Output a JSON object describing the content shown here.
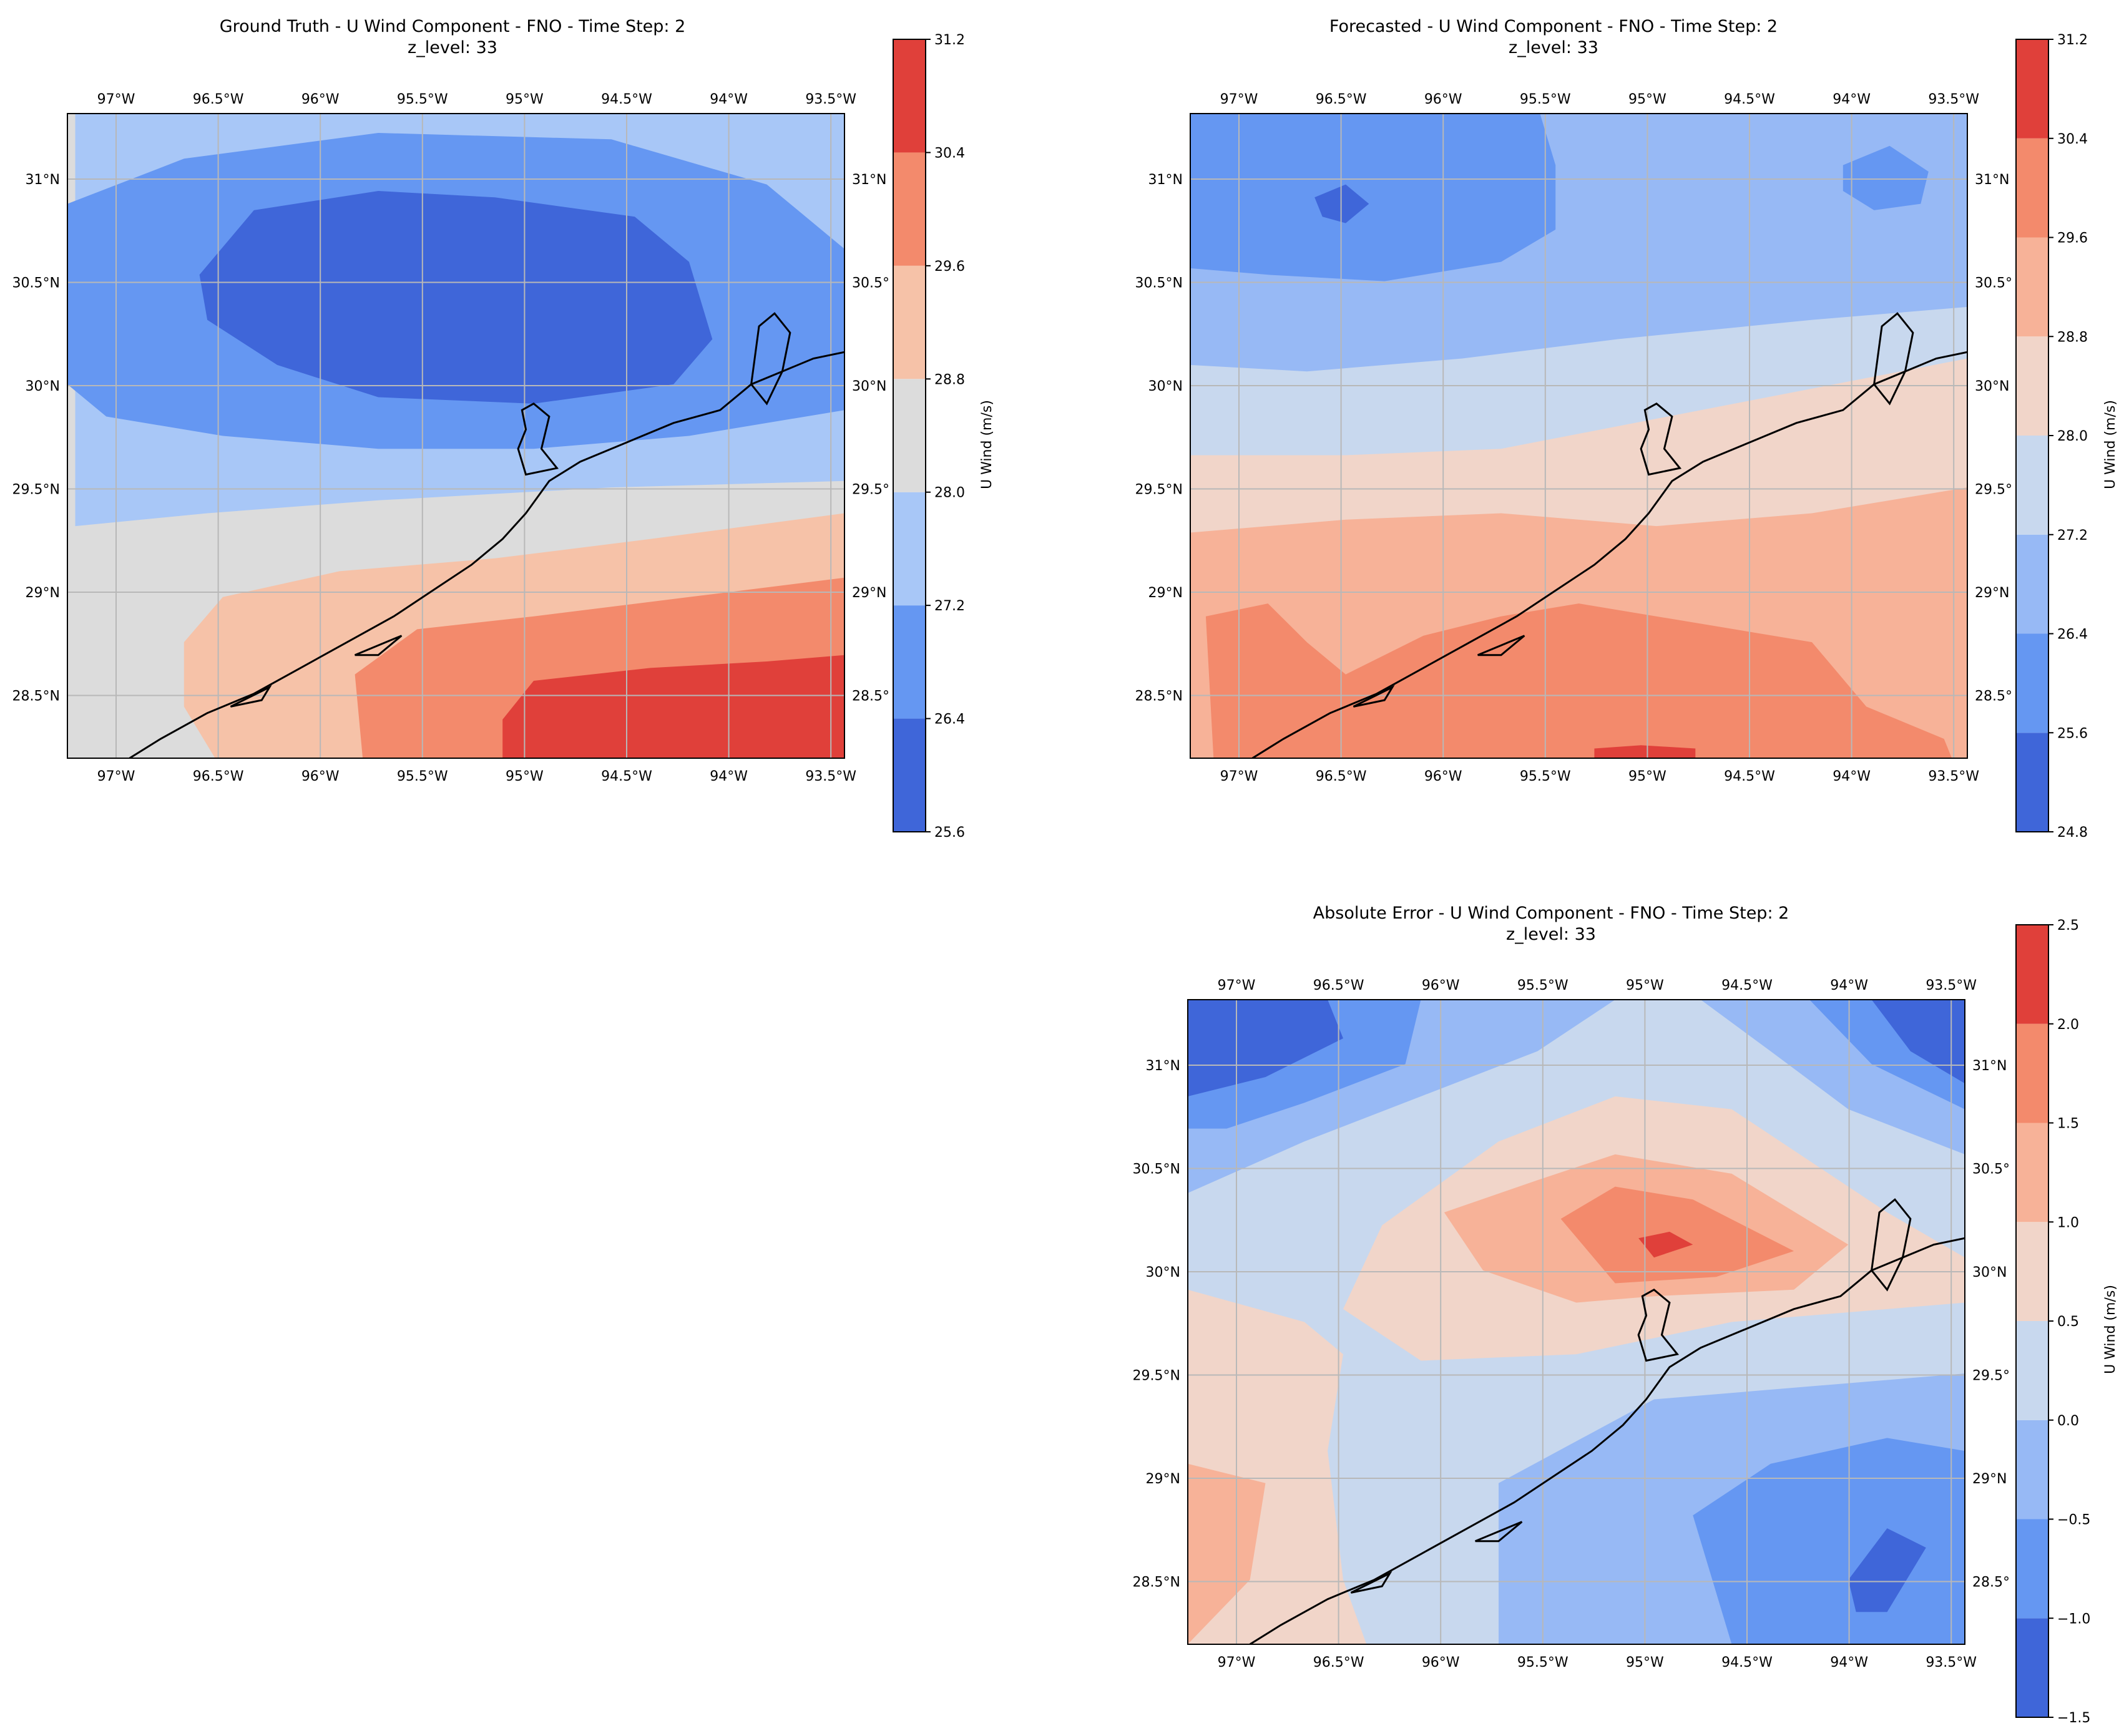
{
  "figure": {
    "panels": [
      {
        "key": "ground_truth",
        "title_line1": "Ground Truth - U Wind Component - FNO - Time Step: 2",
        "title_line2": "z_level: 33",
        "colorbar": {
          "label": "U Wind (m/s)",
          "ticks": [
            "25.6",
            "26.4",
            "27.2",
            "28.0",
            "28.8",
            "29.6",
            "30.4",
            "31.2"
          ],
          "colors": [
            "#3f66d9",
            "#6597f2",
            "#a8c7f7",
            "#dcdcdc",
            "#f6c2a8",
            "#f38a6c",
            "#e0403a"
          ]
        }
      },
      {
        "key": "forecast",
        "title_line1": "Forecasted - U Wind Component - FNO - Time Step: 2",
        "title_line2": "z_level: 33",
        "colorbar": {
          "label": "U Wind (m/s)",
          "ticks": [
            "24.8",
            "25.6",
            "26.4",
            "27.2",
            "28.0",
            "28.8",
            "29.6",
            "30.4",
            "31.2"
          ],
          "colors": [
            "#3f66d9",
            "#6597f2",
            "#97b9f5",
            "#c8d8ee",
            "#f1d5c9",
            "#f7b298",
            "#f38a6c",
            "#e0403a"
          ]
        }
      },
      {
        "key": "abs_error",
        "title_line1": "Absolute Error - U Wind Component - FNO - Time Step: 2",
        "title_line2": "z_level: 33",
        "colorbar": {
          "label": "U Wind (m/s)",
          "ticks": [
            "−1.5",
            "−1.0",
            "−0.5",
            "0.0",
            "0.5",
            "1.0",
            "1.5",
            "2.0",
            "2.5"
          ],
          "colors": [
            "#3f66d9",
            "#6597f2",
            "#97b9f5",
            "#c8d8ee",
            "#f1d5c9",
            "#f7b298",
            "#f38a6c",
            "#e0403a"
          ]
        }
      }
    ],
    "lon_labels": [
      "97°W",
      "96.5°W",
      "96°W",
      "95.5°W",
      "95°W",
      "94.5°W",
      "94°W",
      "93.5°W"
    ],
    "lat_labels_left": [
      "31°N",
      "30.5°N",
      "30°N",
      "29.5°N",
      "29°N",
      "28.5°N"
    ],
    "lat_labels_right": [
      "31°N",
      "30.5°",
      "30°N",
      "29.5°",
      "29°N",
      "28.5°"
    ],
    "grid_color": "#b8b8b8",
    "coast_color": "#000000"
  }
}
